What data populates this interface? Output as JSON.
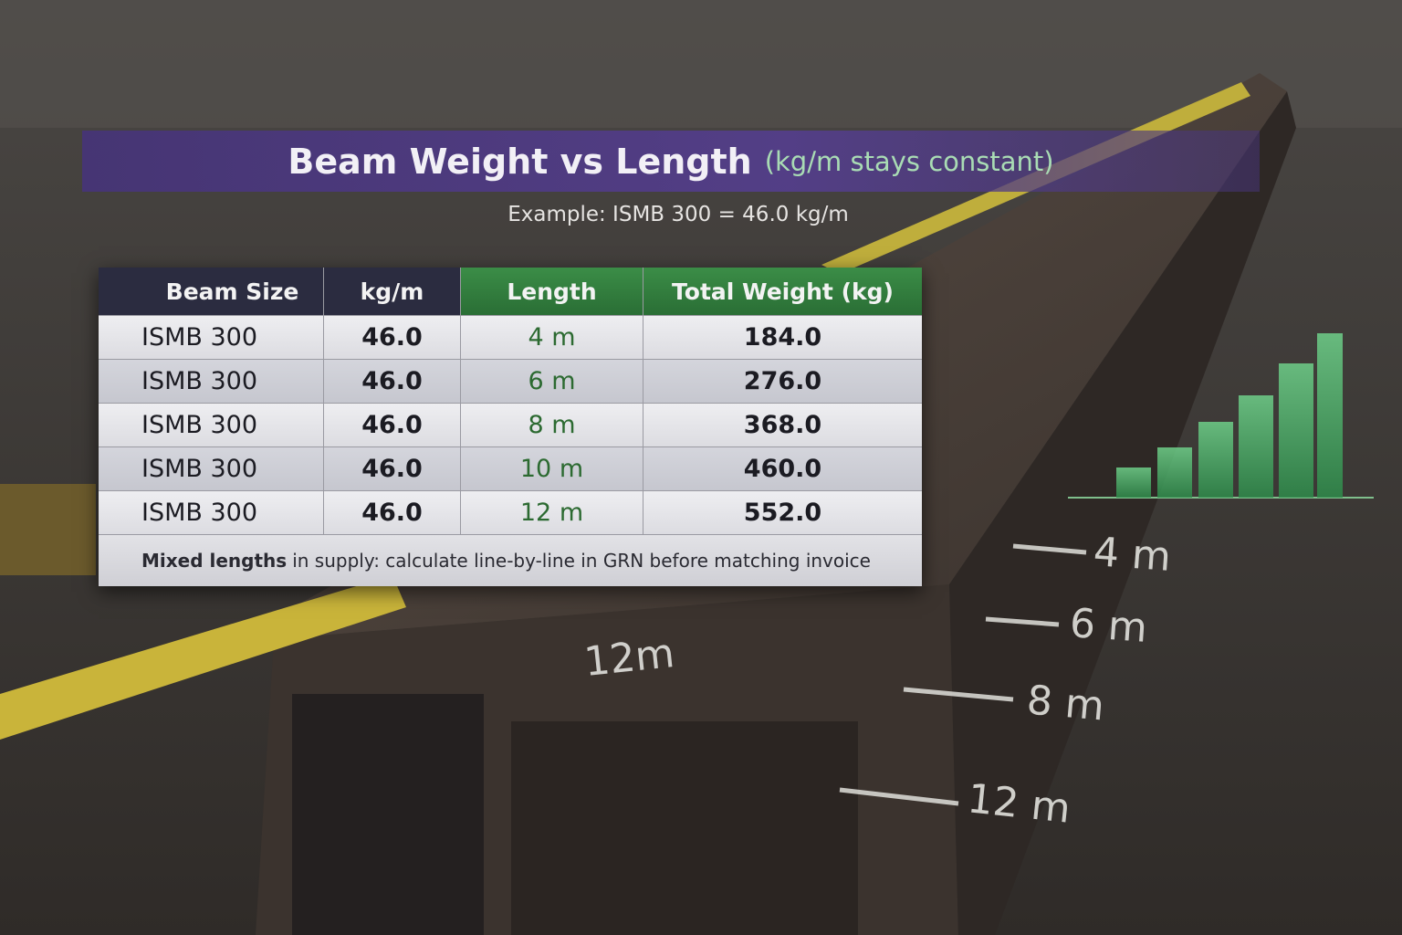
{
  "header": {
    "title": "Beam Weight vs Length",
    "title_note": "(kg/m stays constant)",
    "subtitle": "Example: ISMB 300 = 46.0 kg/m"
  },
  "table": {
    "columns": [
      "Beam Size",
      "kg/m",
      "Length",
      "Total Weight (kg)"
    ],
    "rows": [
      [
        "ISMB 300",
        "46.0",
        "4 m",
        "184.0"
      ],
      [
        "ISMB 300",
        "46.0",
        "6 m",
        "276.0"
      ],
      [
        "ISMB 300",
        "46.0",
        "8 m",
        "368.0"
      ],
      [
        "ISMB 300",
        "46.0",
        "10 m",
        "460.0"
      ],
      [
        "ISMB 300",
        "46.0",
        "12 m",
        "552.0"
      ]
    ],
    "footnote_emphasis": "Mixed lengths",
    "footnote": "in supply: calculate line-by-line in GRN before matching invoice"
  },
  "background_marks": [
    "4 m",
    "6 m",
    "8 m",
    "12 m",
    "12m"
  ]
}
